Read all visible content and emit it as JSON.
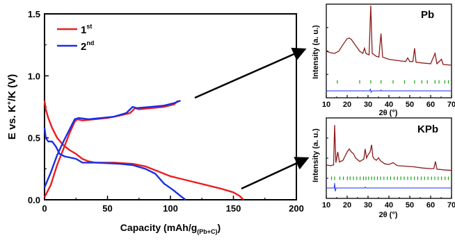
{
  "chart_data": [
    {
      "type": "line",
      "xlabel": "Capacity (mAh/g",
      "xlabel_sub": "(Pb+C)",
      "xlabel_close": ")",
      "ylabel": "E vs. K",
      "ylabel_sup": "+",
      "ylabel_rest": "/K (V)",
      "xlim": [
        0,
        200
      ],
      "ylim": [
        0.0,
        1.5
      ],
      "xticks": [
        "0",
        "50",
        "100",
        "150",
        "200"
      ],
      "yticks": [
        "0.0",
        "0.5",
        "1.0",
        "1.5"
      ],
      "grid": false,
      "legend_position": "top-left",
      "series": [
        {
          "name": "1",
          "name_sup": "st",
          "color": "#ee1c1c",
          "discharge": [
            [
              0,
              0.8
            ],
            [
              1,
              0.73
            ],
            [
              3,
              0.66
            ],
            [
              6,
              0.58
            ],
            [
              10,
              0.5
            ],
            [
              15,
              0.44
            ],
            [
              20,
              0.4
            ],
            [
              25,
              0.37
            ],
            [
              30,
              0.33
            ],
            [
              35,
              0.31
            ],
            [
              40,
              0.3
            ],
            [
              55,
              0.3
            ],
            [
              70,
              0.29
            ],
            [
              80,
              0.27
            ],
            [
              90,
              0.23
            ],
            [
              100,
              0.19
            ],
            [
              120,
              0.14
            ],
            [
              140,
              0.09
            ],
            [
              150,
              0.06
            ],
            [
              155,
              0.03
            ],
            [
              158,
              0.0
            ]
          ],
          "charge": [
            [
              0,
              0.02
            ],
            [
              5,
              0.12
            ],
            [
              10,
              0.28
            ],
            [
              15,
              0.41
            ],
            [
              20,
              0.54
            ],
            [
              24,
              0.63
            ],
            [
              26,
              0.65
            ],
            [
              30,
              0.64
            ],
            [
              40,
              0.65
            ],
            [
              50,
              0.66
            ],
            [
              60,
              0.68
            ],
            [
              68,
              0.7
            ],
            [
              72,
              0.74
            ],
            [
              75,
              0.73
            ],
            [
              85,
              0.74
            ],
            [
              95,
              0.75
            ],
            [
              103,
              0.77
            ],
            [
              106,
              0.8
            ]
          ]
        },
        {
          "name": "2",
          "name_sup": "nd",
          "color": "#1a2ee8",
          "discharge": [
            [
              0,
              0.58
            ],
            [
              1,
              0.5
            ],
            [
              3,
              0.47
            ],
            [
              6,
              0.47
            ],
            [
              9,
              0.43
            ],
            [
              12,
              0.37
            ],
            [
              16,
              0.35
            ],
            [
              25,
              0.33
            ],
            [
              30,
              0.3
            ],
            [
              40,
              0.3
            ],
            [
              60,
              0.29
            ],
            [
              70,
              0.28
            ],
            [
              80,
              0.25
            ],
            [
              88,
              0.21
            ],
            [
              95,
              0.13
            ],
            [
              102,
              0.08
            ],
            [
              108,
              0.03
            ],
            [
              112,
              0.0
            ]
          ],
          "charge": [
            [
              0,
              0.1
            ],
            [
              5,
              0.22
            ],
            [
              10,
              0.36
            ],
            [
              15,
              0.47
            ],
            [
              20,
              0.57
            ],
            [
              24,
              0.65
            ],
            [
              27,
              0.66
            ],
            [
              35,
              0.65
            ],
            [
              45,
              0.66
            ],
            [
              55,
              0.67
            ],
            [
              65,
              0.7
            ],
            [
              70,
              0.75
            ],
            [
              73,
              0.74
            ],
            [
              85,
              0.75
            ],
            [
              95,
              0.76
            ],
            [
              103,
              0.78
            ],
            [
              108,
              0.8
            ]
          ]
        }
      ]
    },
    {
      "type": "line",
      "title": "Pb",
      "xlabel": "2θ (°)",
      "ylabel": "Intensity (a. u.)",
      "xlim": [
        10,
        70
      ],
      "xticks": [
        "10",
        "20",
        "30",
        "40",
        "50",
        "60",
        "70"
      ],
      "grid": false,
      "observed_color": "#8b1a1a",
      "difference_color": "#1a2ee8",
      "tick_color": "#19a319",
      "observed": [
        [
          10,
          0.36
        ],
        [
          12,
          0.34
        ],
        [
          14,
          0.33
        ],
        [
          16,
          0.36
        ],
        [
          18,
          0.45
        ],
        [
          20,
          0.53
        ],
        [
          21,
          0.54
        ],
        [
          22,
          0.52
        ],
        [
          24,
          0.44
        ],
        [
          26,
          0.36
        ],
        [
          27.5,
          0.33
        ],
        [
          28.3,
          0.4
        ],
        [
          29,
          0.33
        ],
        [
          30.5,
          0.31
        ],
        [
          31.3,
          0.98
        ],
        [
          32,
          0.33
        ],
        [
          34,
          0.29
        ],
        [
          35.2,
          0.28
        ],
        [
          36.2,
          0.6
        ],
        [
          37,
          0.28
        ],
        [
          40,
          0.25
        ],
        [
          45,
          0.23
        ],
        [
          48,
          0.22
        ],
        [
          49,
          0.27
        ],
        [
          50,
          0.22
        ],
        [
          51.5,
          0.22
        ],
        [
          52.3,
          0.4
        ],
        [
          53,
          0.21
        ],
        [
          56,
          0.2
        ],
        [
          60,
          0.19
        ],
        [
          62.1,
          0.33
        ],
        [
          63,
          0.19
        ],
        [
          65.2,
          0.25
        ],
        [
          66,
          0.18
        ],
        [
          70,
          0.17
        ]
      ],
      "reflections": [
        15.3,
        26.0,
        31.3,
        36.2,
        42.0,
        47.5,
        52.3,
        55.8,
        58.4,
        62.1,
        64.0,
        66.8,
        68.5
      ],
      "difference": [
        [
          10,
          0.0
        ],
        [
          20,
          0.0
        ],
        [
          30.8,
          0.0
        ],
        [
          31.1,
          0.06
        ],
        [
          31.5,
          -0.05
        ],
        [
          32,
          0.0
        ],
        [
          36,
          0.0
        ],
        [
          36.2,
          0.03
        ],
        [
          36.5,
          0.0
        ],
        [
          70,
          0.0
        ]
      ]
    },
    {
      "type": "line",
      "title": "KPb",
      "xlabel": "2θ (°)",
      "xlim": [
        10,
        70
      ],
      "xticks": [
        "10",
        "20",
        "30",
        "40",
        "50",
        "60",
        "70"
      ],
      "grid": false,
      "observed_color": "#8b1a1a",
      "difference_color": "#1a2ee8",
      "tick_color": "#19a319",
      "observed": [
        [
          10,
          0.28
        ],
        [
          12,
          0.27
        ],
        [
          13.5,
          0.28
        ],
        [
          14.0,
          0.95
        ],
        [
          14.6,
          0.32
        ],
        [
          15.5,
          0.5
        ],
        [
          16.3,
          0.33
        ],
        [
          18,
          0.36
        ],
        [
          20,
          0.5
        ],
        [
          21,
          0.55
        ],
        [
          22,
          0.5
        ],
        [
          23,
          0.47
        ],
        [
          24,
          0.4
        ],
        [
          26,
          0.34
        ],
        [
          28,
          0.38
        ],
        [
          28.6,
          0.55
        ],
        [
          29.3,
          0.4
        ],
        [
          30,
          0.45
        ],
        [
          31,
          0.5
        ],
        [
          31.7,
          0.62
        ],
        [
          32.3,
          0.42
        ],
        [
          33,
          0.38
        ],
        [
          34,
          0.36
        ],
        [
          35,
          0.4
        ],
        [
          36,
          0.35
        ],
        [
          38,
          0.3
        ],
        [
          40,
          0.29
        ],
        [
          42,
          0.32
        ],
        [
          44,
          0.27
        ],
        [
          48,
          0.26
        ],
        [
          52,
          0.25
        ],
        [
          56,
          0.23
        ],
        [
          60,
          0.22
        ],
        [
          61.5,
          0.22
        ],
        [
          62.3,
          0.34
        ],
        [
          63,
          0.21
        ],
        [
          66,
          0.2
        ],
        [
          70,
          0.19
        ]
      ],
      "reflections": [
        12.5,
        14.0,
        16.5,
        18.2,
        20.1,
        21.4,
        23.0,
        24.6,
        26.2,
        27.8,
        29.0,
        30.3,
        31.7,
        33.0,
        34.5,
        36.0,
        37.6,
        39.2,
        40.8,
        42.5,
        44.1,
        45.7,
        47.3,
        49.0,
        50.6,
        52.2,
        53.8,
        55.5,
        57.1,
        58.7,
        60.4,
        62.0,
        63.6,
        65.2,
        66.9,
        68.5
      ],
      "difference": [
        [
          10,
          0.0
        ],
        [
          13.8,
          0.0
        ],
        [
          14.0,
          0.18
        ],
        [
          14.3,
          -0.12
        ],
        [
          14.7,
          0.0
        ],
        [
          28.5,
          0.0
        ],
        [
          28.7,
          0.03
        ],
        [
          29,
          0.0
        ],
        [
          70,
          0.0
        ]
      ]
    }
  ]
}
